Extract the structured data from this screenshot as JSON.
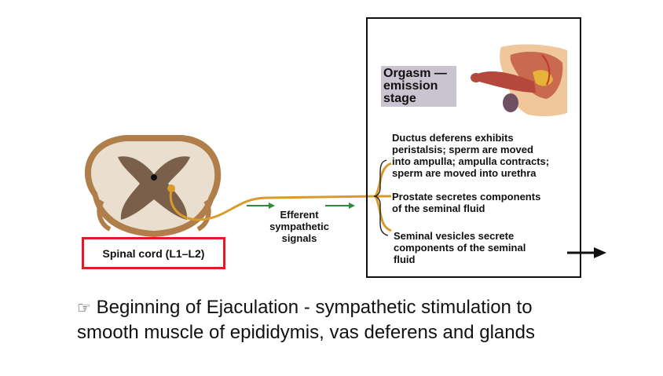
{
  "stage_label": "Orgasm —\nemission\nstage",
  "descriptions": [
    "Ductus deferens exhibits\nperistalsis; sperm are moved\ninto ampulla; ampulla contracts;\nsperm are moved into urethra",
    "Prostate secretes components\nof the seminal fluid",
    "Seminal vesicles secrete\ncomponents of the seminal\nfluid"
  ],
  "signal_label": "Efferent\nsympathetic\nsignals",
  "cord_label": "Spinal cord (L1–L2)",
  "caption": {
    "bullet": "☞",
    "line1": "Beginning of Ejaculation - sympathetic stimulation to",
    "line2": "smooth muscle of epididymis, vas deferens and glands"
  },
  "colors": {
    "nerve": "#d99a2b",
    "arrow_green": "#2e8b3a",
    "frame_red": "#e01b24",
    "label_bg": "#c9c4cf",
    "cord_white": "#eadfcf",
    "cord_gray": "#7a5f4a"
  }
}
